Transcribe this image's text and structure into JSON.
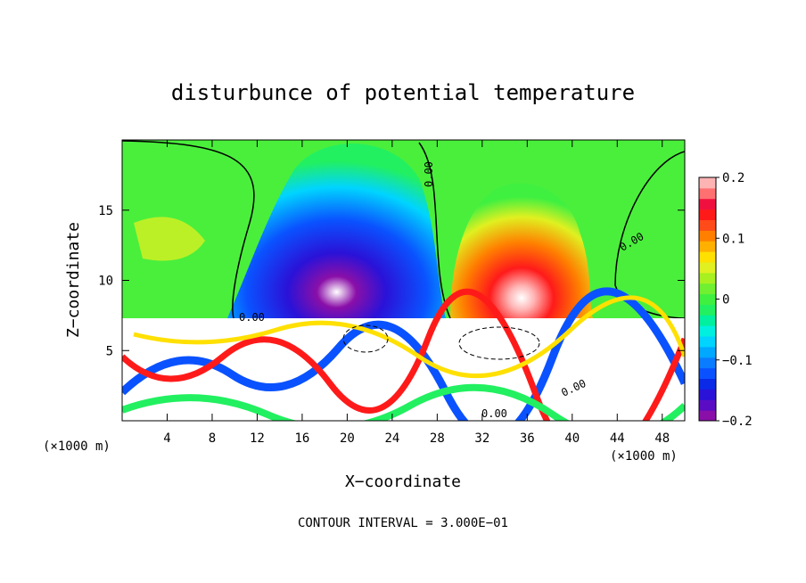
{
  "chart_data": {
    "type": "heatmap",
    "title": "disturbunce of potential temperature",
    "xlabel": "X−coordinate",
    "ylabel": "Z−coordinate",
    "x_unit_left": "(×1000 m)",
    "x_unit_right": "(×1000 m)",
    "x_ticks": [
      4,
      8,
      12,
      16,
      20,
      24,
      28,
      32,
      36,
      40,
      44,
      48
    ],
    "y_ticks": [
      5,
      10,
      15
    ],
    "xlim": [
      0,
      50
    ],
    "ylim": [
      0,
      20
    ],
    "footer": "CONTOUR INTERVAL = 3.000E−01",
    "contour_labels": [
      "0.00",
      "0.00",
      "0.00",
      "0.00",
      "0.00"
    ],
    "colorbar": {
      "min": -0.2,
      "max": 0.2,
      "tick_labels": [
        "0.2",
        "0.1",
        "0",
        "−0.1",
        "−0.2"
      ],
      "tick_values": [
        0.2,
        0.1,
        0,
        -0.1,
        -0.2
      ],
      "colors": [
        "#8a0fa8",
        "#5a0cc4",
        "#2a12d8",
        "#0a2ae8",
        "#0a52ff",
        "#0a7cff",
        "#00a8ff",
        "#00d4ff",
        "#00f0e0",
        "#00f0a0",
        "#22f060",
        "#40f040",
        "#70f030",
        "#a8f020",
        "#e0f020",
        "#ffe000",
        "#ffb000",
        "#ff8000",
        "#ff4a1a",
        "#ff1a1a",
        "#f01040",
        "#ff7070",
        "#ffb4b4"
      ]
    },
    "features": [
      {
        "kind": "cold_plume",
        "x_center": 21,
        "z_top": 18.5,
        "min_value": -0.2
      },
      {
        "kind": "warm_plume",
        "x_center": 35,
        "z_top": 16.5,
        "max_value": 0.2
      }
    ]
  }
}
